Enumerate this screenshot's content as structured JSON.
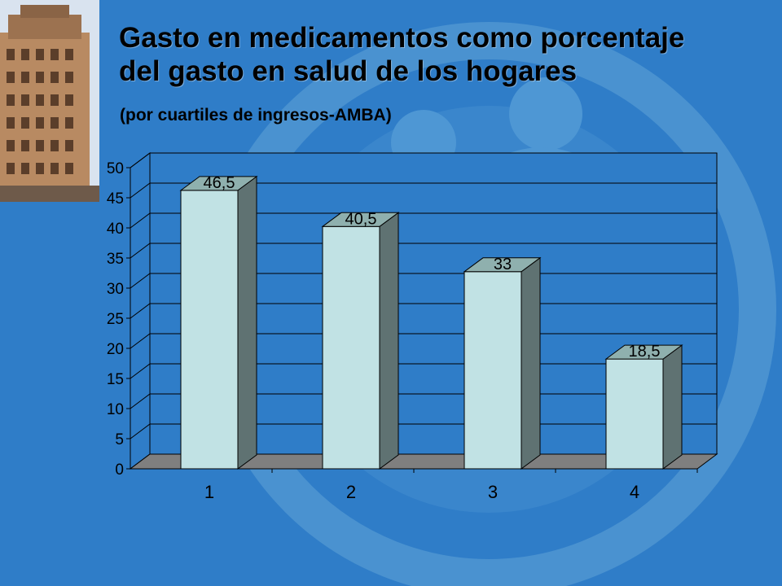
{
  "slide": {
    "title_line1": "Gasto en medicamentos como porcentaje",
    "title_line2": "del gasto en salud de los hogares",
    "subtitle": "(por cuartiles de ingresos-AMBA)"
  },
  "colors": {
    "background": "#2f7dc8",
    "bar_front": "#c1e2e4",
    "bar_side": "#5f7272",
    "bar_top": "#8fb0ae",
    "floor": "#7f7f7f",
    "plot_back": "#2f7dc8",
    "grid": "#000000"
  },
  "chart_data": {
    "type": "bar",
    "style": "3d-column",
    "title": "",
    "xlabel": "",
    "ylabel": "",
    "categories": [
      "1",
      "2",
      "3",
      "4"
    ],
    "values": [
      46.5,
      40.5,
      33,
      18.5
    ],
    "data_labels": [
      "46,5",
      "40,5",
      "33",
      "18,5"
    ],
    "ylim": [
      0,
      50
    ],
    "yticks": [
      0,
      5,
      10,
      15,
      20,
      25,
      30,
      35,
      40,
      45,
      50
    ],
    "grid": true,
    "legend": "none"
  }
}
